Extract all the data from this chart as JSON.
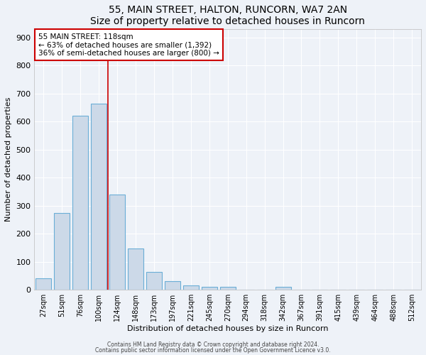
{
  "title": "55, MAIN STREET, HALTON, RUNCORN, WA7 2AN",
  "subtitle": "Size of property relative to detached houses in Runcorn",
  "xlabel": "Distribution of detached houses by size in Runcorn",
  "ylabel": "Number of detached properties",
  "categories": [
    "27sqm",
    "51sqm",
    "76sqm",
    "100sqm",
    "124sqm",
    "148sqm",
    "173sqm",
    "197sqm",
    "221sqm",
    "245sqm",
    "270sqm",
    "294sqm",
    "318sqm",
    "342sqm",
    "367sqm",
    "391sqm",
    "415sqm",
    "439sqm",
    "464sqm",
    "488sqm",
    "512sqm"
  ],
  "values": [
    40,
    275,
    620,
    665,
    340,
    148,
    65,
    30,
    15,
    10,
    10,
    0,
    0,
    10,
    0,
    0,
    0,
    0,
    0,
    0,
    0
  ],
  "bar_color": "#ccd9e8",
  "bar_edge_color": "#6baed6",
  "red_line_bin_index": 4,
  "red_line_color": "#cc0000",
  "annotation_text": "55 MAIN STREET: 118sqm\n← 63% of detached houses are smaller (1,392)\n36% of semi-detached houses are larger (800) →",
  "annotation_box_color": "#ffffff",
  "annotation_box_edge": "#cc0000",
  "ylim": [
    0,
    930
  ],
  "yticks": [
    0,
    100,
    200,
    300,
    400,
    500,
    600,
    700,
    800,
    900
  ],
  "footnote1": "Contains HM Land Registry data © Crown copyright and database right 2024.",
  "footnote2": "Contains public sector information licensed under the Open Government Licence v3.0.",
  "bg_color": "#eef2f8",
  "grid_color": "#ffffff",
  "title_fontsize": 10,
  "label_fontsize": 8,
  "tick_fontsize": 7
}
